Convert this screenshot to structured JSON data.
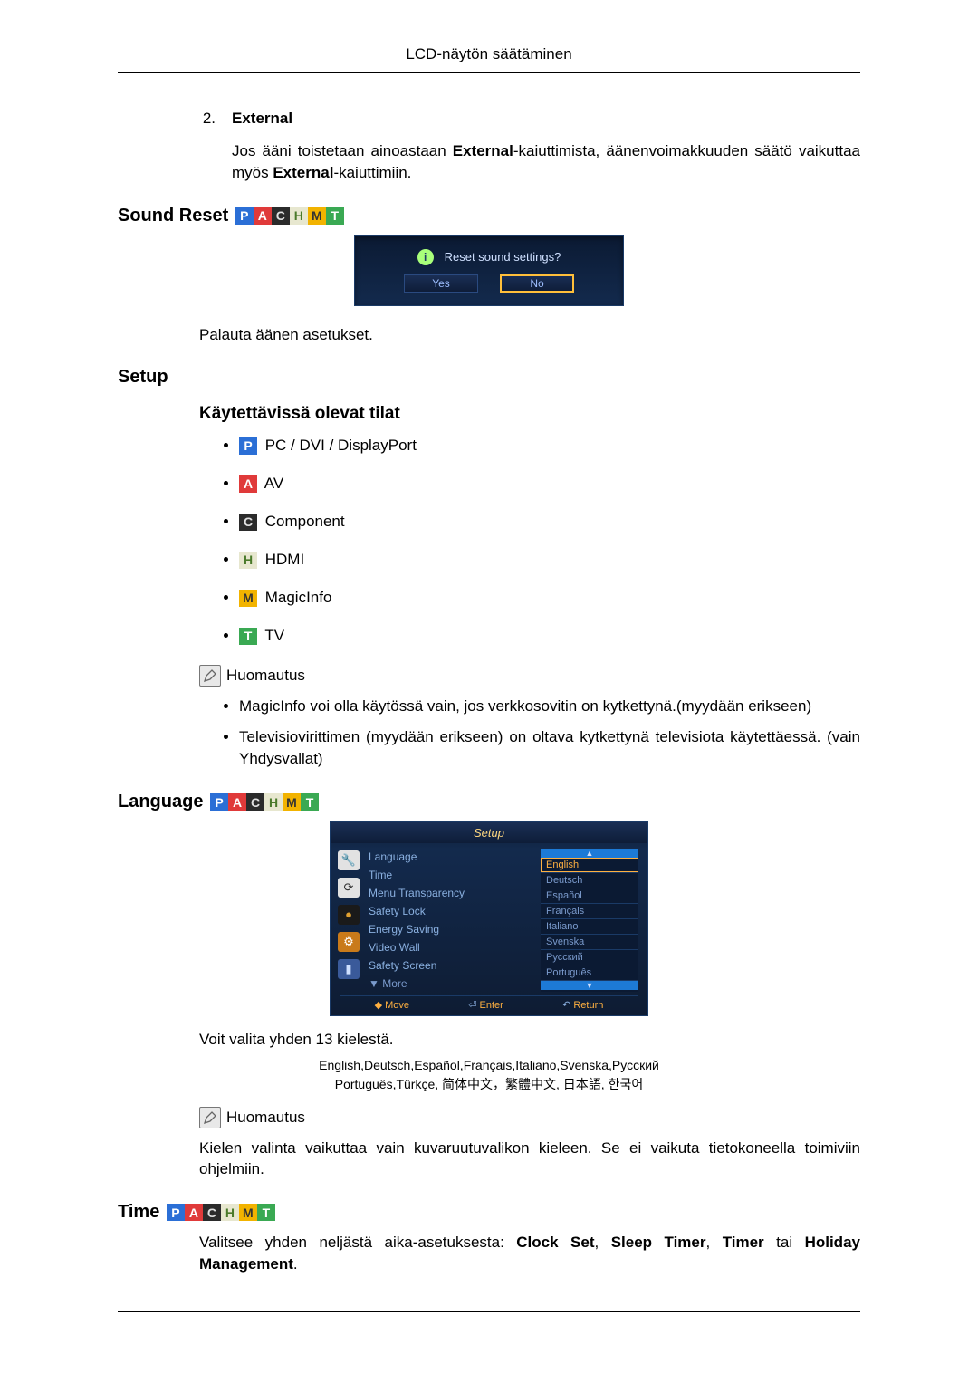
{
  "header": "LCD-näytön säätäminen",
  "external": {
    "num": "2.",
    "label": "External",
    "para_pre": "Jos ääni toistetaan ainoastaan ",
    "para_bold1": "External",
    "para_mid": "-kaiuttimista, äänenvoimakkuuden säätö vaikuttaa myös ",
    "para_bold2": "External",
    "para_post": "-kaiuttimiin."
  },
  "sound_reset": {
    "title": "Sound Reset",
    "dialog": {
      "question": "Reset sound settings?",
      "yes": "Yes",
      "no": "No"
    },
    "caption": "Palauta äänen asetukset."
  },
  "setup": {
    "title": "Setup",
    "subtitle": "Käytettävissä olevat tilat",
    "modes": [
      {
        "badge": "P",
        "cls": "bP",
        "label": "PC / DVI / DisplayPort"
      },
      {
        "badge": "A",
        "cls": "bA",
        "label": "AV"
      },
      {
        "badge": "C",
        "cls": "bC",
        "label": "Component"
      },
      {
        "badge": "H",
        "cls": "bH",
        "label": "HDMI"
      },
      {
        "badge": "M",
        "cls": "bM",
        "label": "MagicInfo"
      },
      {
        "badge": "T",
        "cls": "bT",
        "label": "TV"
      }
    ],
    "note_label": "Huomautus",
    "notes": [
      {
        "pre": "",
        "bold": "MagicInfo",
        "post": " voi olla käytössä vain, jos verkkosovitin on kytkettynä.(myydään erikseen)"
      },
      {
        "pre": "Televisiovirittimen (myydään erikseen) on oltava kytkettynä televisiota käytettäessä. (vain Yhdysvallat)",
        "bold": "",
        "post": ""
      }
    ]
  },
  "language": {
    "title": "Language",
    "menu_title": "Setup",
    "left_items": [
      "Language",
      "Time",
      "Menu Transparency",
      "Safety Lock",
      "Energy Saving",
      "Video Wall",
      "Safety Screen"
    ],
    "left_more": "▼ More",
    "opts": [
      "English",
      "Deutsch",
      "Español",
      "Français",
      "Italiano",
      "Svenska",
      "Русский",
      "Português"
    ],
    "foot": [
      "Move",
      "Enter",
      "Return"
    ],
    "caption": "Voit valita yhden 13 kielestä.",
    "strip1": "English,Deutsch,Español,Français,Italiano,Svenska,Русский",
    "strip2": "Português,Türkçe, 简体中文，繁體中文, 日本語, 한국어",
    "note_label": "Huomautus",
    "note_text": "Kielen valinta vaikuttaa vain kuvaruutuvalikon kieleen. Se ei vaikuta tietokoneella toimiviin ohjelmiin."
  },
  "time": {
    "title": "Time",
    "para_pre": "Valitsee yhden neljästä aika-asetuksesta: ",
    "b1": "Clock Set",
    "b2": "Sleep Timer",
    "b3": "Timer",
    "or": " tai ",
    "b4": "Holiday Management",
    "sep": ", "
  },
  "badges": {
    "P": "P",
    "A": "A",
    "C": "C",
    "H": "H",
    "M": "M",
    "T": "T"
  }
}
